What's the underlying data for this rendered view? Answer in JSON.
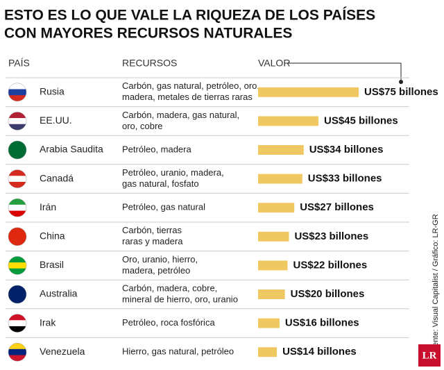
{
  "chart_data": {
    "type": "bar",
    "title": [
      "ESTO ES LO QUE VALE LA RIQUEZA DE LOS PAÍSES",
      "CON MAYORES RECURSOS NATURALES"
    ],
    "column_headers": [
      "PAÍS",
      "RECURSOS",
      "VALOR"
    ],
    "categories": [
      "Rusia",
      "EE.UU.",
      "Arabia Saudita",
      "Canadá",
      "Irán",
      "China",
      "Brasil",
      "Australia",
      "Irak",
      "Venezuela"
    ],
    "resources": [
      [
        "Carbón, gas natural, petróleo, oro,",
        "madera, metales de tierras raras"
      ],
      [
        "Carbón, madera, gas natural,",
        "oro, cobre"
      ],
      [
        "Petróleo, madera"
      ],
      [
        "Petróleo, uranio, madera,",
        "gas natural, fosfato"
      ],
      [
        "Petróleo, gas natural"
      ],
      [
        "Carbón, tierras",
        "raras y madera"
      ],
      [
        "Oro, uranio, hierro,",
        "madera, petróleo"
      ],
      [
        "Carbón, madera, cobre,",
        "mineral de hierro, oro, uranio"
      ],
      [
        "Petróleo, roca fosfórica"
      ],
      [
        "Hierro, gas natural, petróleo"
      ]
    ],
    "values": [
      75,
      45,
      34,
      33,
      27,
      23,
      22,
      20,
      16,
      14
    ],
    "value_labels": [
      "US$75 billones",
      "US$45 billones",
      "US$34 billones",
      "US$33 billones",
      "US$27 billones",
      "US$23 billones",
      "US$22 billones",
      "US$20 billones",
      "US$16 billones",
      "US$14 billones"
    ],
    "color": "#f0c862",
    "source": "Fuente: Visual Capitalist  / Gráfico: LR-GR",
    "logo": "LR"
  }
}
